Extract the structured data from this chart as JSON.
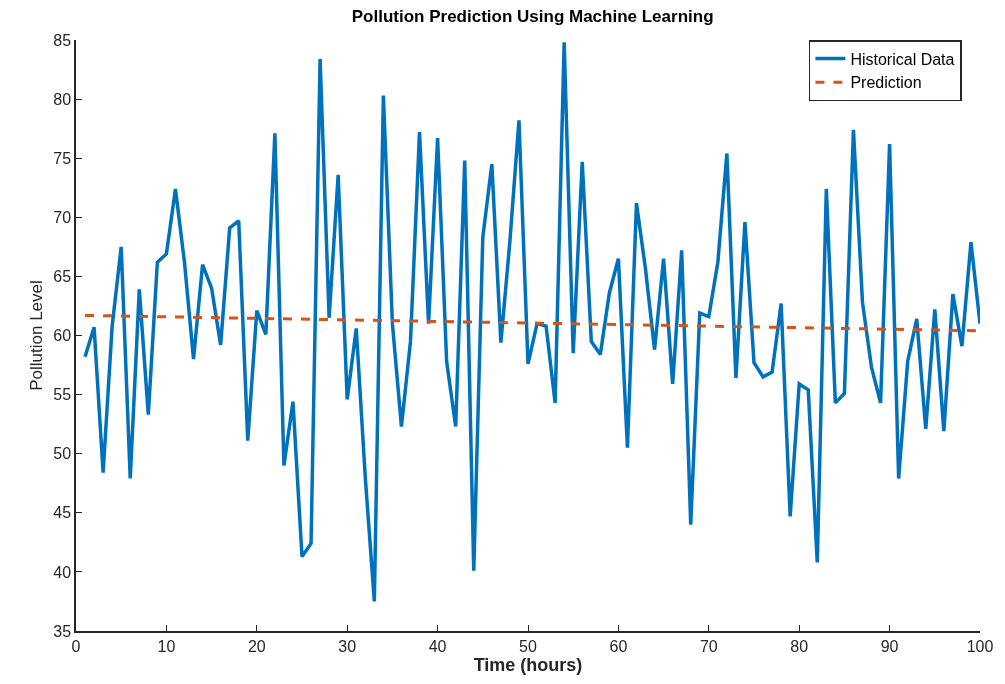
{
  "chart_data": {
    "type": "line",
    "title": "Pollution Prediction Using Machine Learning",
    "xlabel": "Time (hours)",
    "ylabel": "Pollution Level",
    "xlim": [
      0,
      100
    ],
    "xticks": [
      0,
      10,
      20,
      30,
      40,
      50,
      60,
      70,
      80,
      90,
      100
    ],
    "ylim": [
      35,
      85
    ],
    "yticks": [
      35,
      40,
      45,
      50,
      55,
      60,
      65,
      70,
      75,
      80,
      85
    ],
    "legend": "top right",
    "series": [
      {
        "name": "Historical Data",
        "color": "#0072bd",
        "line_style": "solid",
        "x": [
          1,
          2,
          3,
          4,
          5,
          6,
          7,
          8,
          9,
          10,
          11,
          12,
          13,
          14,
          15,
          16,
          17,
          18,
          19,
          20,
          21,
          22,
          23,
          24,
          25,
          26,
          27,
          28,
          29,
          30,
          31,
          32,
          33,
          34,
          35,
          36,
          37,
          38,
          39,
          40,
          41,
          42,
          43,
          44,
          45,
          46,
          47,
          48,
          49,
          50,
          51,
          52,
          53,
          54,
          55,
          56,
          57,
          58,
          59,
          60,
          61,
          62,
          63,
          64,
          65,
          66,
          67,
          68,
          69,
          70,
          71,
          72,
          73,
          74,
          75,
          76,
          77,
          78,
          79,
          80,
          81,
          82,
          83,
          84,
          85,
          86,
          87,
          88,
          89,
          90,
          91,
          92,
          93,
          94,
          95,
          96,
          97,
          98,
          99,
          100
        ],
        "values": [
          58.2,
          60.7,
          48.4,
          60.8,
          67.5,
          47.9,
          63.9,
          53.3,
          66.2,
          66.9,
          72.4,
          66.2,
          58.0,
          66.0,
          64.0,
          59.2,
          69.1,
          69.7,
          51.1,
          62.1,
          60.1,
          77.1,
          49.0,
          54.4,
          41.3,
          42.4,
          83.4,
          61.5,
          73.6,
          54.6,
          60.6,
          48.0,
          37.5,
          80.3,
          61.0,
          52.3,
          59.5,
          77.2,
          61.0,
          76.7,
          57.8,
          52.3,
          74.8,
          40.1,
          68.3,
          74.5,
          59.4,
          68.0,
          78.2,
          57.6,
          61.0,
          60.8,
          54.3,
          84.8,
          58.5,
          74.7,
          59.5,
          58.4,
          63.6,
          66.5,
          50.5,
          71.2,
          65.6,
          58.8,
          66.5,
          55.9,
          67.2,
          44.0,
          61.9,
          61.6,
          66.2,
          75.4,
          56.4,
          69.6,
          57.7,
          56.5,
          56.9,
          62.7,
          44.7,
          55.9,
          55.4,
          40.8,
          72.4,
          54.3,
          55.1,
          77.4,
          62.8,
          57.3,
          54.3,
          76.2,
          47.9,
          57.8,
          61.4,
          52.1,
          62.2,
          51.9,
          63.5,
          59.1,
          67.9,
          61.0
        ]
      },
      {
        "name": "Prediction",
        "color": "#d95319",
        "line_style": "dashed",
        "x": [
          1,
          100
        ],
        "values": [
          61.7,
          60.4
        ]
      }
    ]
  }
}
